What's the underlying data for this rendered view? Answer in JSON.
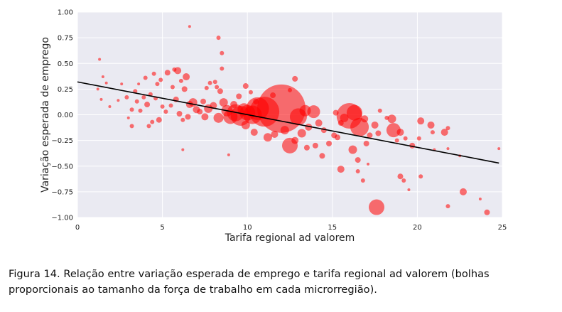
{
  "caption": "Figura 14. Relação entre variação esperada de emprego e tarifa regional ad valorem (bolhas proporcionais ao tamanho da força de trabalho em cada microrregião).",
  "chart_data": {
    "type": "scatter",
    "xlabel": "Tarifa regional ad valorem",
    "ylabel": "Variação esperada de emprego",
    "xlim": [
      0,
      25
    ],
    "ylim": [
      -1.0,
      1.0
    ],
    "xticks": [
      "0",
      "5",
      "10",
      "15",
      "20",
      "25"
    ],
    "yticks": [
      "−1.00",
      "−0.75",
      "−0.50",
      "−0.25",
      "0.00",
      "0.25",
      "0.50",
      "0.75",
      "1.00"
    ],
    "grid": true,
    "background": "#eaeaf2",
    "marker_color": "#ff0000",
    "marker_alpha": 0.55,
    "fit_line": {
      "x": [
        0,
        24.8
      ],
      "y": [
        0.32,
        -0.47
      ],
      "color": "#000000"
    },
    "series": [
      {
        "points": [
          {
            "x": 1.3,
            "y": 0.54,
            "s": 2
          },
          {
            "x": 1.5,
            "y": 0.37,
            "s": 2
          },
          {
            "x": 1.7,
            "y": 0.31,
            "s": 2
          },
          {
            "x": 1.2,
            "y": 0.25,
            "s": 2
          },
          {
            "x": 1.4,
            "y": 0.15,
            "s": 2
          },
          {
            "x": 1.9,
            "y": 0.08,
            "s": 2
          },
          {
            "x": 2.4,
            "y": 0.14,
            "s": 2
          },
          {
            "x": 2.6,
            "y": 0.3,
            "s": 2
          },
          {
            "x": 2.9,
            "y": 0.17,
            "s": 3
          },
          {
            "x": 3.2,
            "y": 0.05,
            "s": 3
          },
          {
            "x": 3.0,
            "y": -0.03,
            "s": 2
          },
          {
            "x": 3.2,
            "y": -0.11,
            "s": 3
          },
          {
            "x": 3.5,
            "y": 0.13,
            "s": 3
          },
          {
            "x": 3.7,
            "y": 0.04,
            "s": 3
          },
          {
            "x": 3.4,
            "y": 0.23,
            "s": 3
          },
          {
            "x": 3.6,
            "y": 0.3,
            "s": 2
          },
          {
            "x": 4.0,
            "y": 0.36,
            "s": 3
          },
          {
            "x": 3.9,
            "y": 0.17,
            "s": 3
          },
          {
            "x": 4.1,
            "y": 0.1,
            "s": 4
          },
          {
            "x": 4.3,
            "y": 0.2,
            "s": 3
          },
          {
            "x": 4.6,
            "y": 0.16,
            "s": 3
          },
          {
            "x": 4.7,
            "y": 0.3,
            "s": 3
          },
          {
            "x": 4.5,
            "y": 0.4,
            "s": 3
          },
          {
            "x": 4.9,
            "y": 0.34,
            "s": 3
          },
          {
            "x": 5.0,
            "y": 0.08,
            "s": 3
          },
          {
            "x": 4.8,
            "y": -0.05,
            "s": 4
          },
          {
            "x": 4.4,
            "y": -0.07,
            "s": 3
          },
          {
            "x": 4.2,
            "y": -0.11,
            "s": 3
          },
          {
            "x": 5.2,
            "y": 0.03,
            "s": 3
          },
          {
            "x": 5.5,
            "y": 0.09,
            "s": 3
          },
          {
            "x": 5.8,
            "y": 0.15,
            "s": 4
          },
          {
            "x": 5.6,
            "y": 0.27,
            "s": 3
          },
          {
            "x": 5.3,
            "y": 0.41,
            "s": 4
          },
          {
            "x": 5.7,
            "y": 0.44,
            "s": 3
          },
          {
            "x": 5.9,
            "y": 0.43,
            "s": 5
          },
          {
            "x": 6.1,
            "y": 0.33,
            "s": 3
          },
          {
            "x": 6.3,
            "y": 0.25,
            "s": 4
          },
          {
            "x": 6.4,
            "y": 0.37,
            "s": 5
          },
          {
            "x": 6.0,
            "y": 0.01,
            "s": 4
          },
          {
            "x": 6.2,
            "y": -0.05,
            "s": 3
          },
          {
            "x": 6.5,
            "y": -0.02,
            "s": 4
          },
          {
            "x": 6.6,
            "y": 0.1,
            "s": 5
          },
          {
            "x": 6.8,
            "y": 0.12,
            "s": 6
          },
          {
            "x": 7.0,
            "y": 0.05,
            "s": 5
          },
          {
            "x": 7.2,
            "y": 0.03,
            "s": 4
          },
          {
            "x": 7.4,
            "y": 0.13,
            "s": 4
          },
          {
            "x": 7.6,
            "y": 0.26,
            "s": 3
          },
          {
            "x": 7.8,
            "y": 0.31,
            "s": 3
          },
          {
            "x": 7.5,
            "y": -0.02,
            "s": 5
          },
          {
            "x": 7.7,
            "y": 0.06,
            "s": 6
          },
          {
            "x": 8.0,
            "y": 0.09,
            "s": 5
          },
          {
            "x": 8.2,
            "y": 0.27,
            "s": 3
          },
          {
            "x": 8.1,
            "y": 0.32,
            "s": 3
          },
          {
            "x": 8.4,
            "y": 0.23,
            "s": 4
          },
          {
            "x": 8.6,
            "y": 0.12,
            "s": 6
          },
          {
            "x": 8.8,
            "y": 0.04,
            "s": 8
          },
          {
            "x": 8.3,
            "y": -0.03,
            "s": 7
          },
          {
            "x": 9.0,
            "y": -0.02,
            "s": 10
          },
          {
            "x": 9.3,
            "y": 0.02,
            "s": 12
          },
          {
            "x": 9.6,
            "y": -0.01,
            "s": 14
          },
          {
            "x": 9.8,
            "y": 0.05,
            "s": 9
          },
          {
            "x": 10.0,
            "y": 0.02,
            "s": 11
          },
          {
            "x": 10.3,
            "y": 0.0,
            "s": 13
          },
          {
            "x": 10.6,
            "y": 0.06,
            "s": 16
          },
          {
            "x": 11.0,
            "y": 0.03,
            "s": 21
          },
          {
            "x": 12.0,
            "y": 0.06,
            "s": 34
          },
          {
            "x": 13.0,
            "y": -0.02,
            "s": 12
          },
          {
            "x": 13.4,
            "y": 0.04,
            "s": 8
          },
          {
            "x": 9.2,
            "y": 0.1,
            "s": 5
          },
          {
            "x": 9.5,
            "y": 0.18,
            "s": 4
          },
          {
            "x": 9.9,
            "y": 0.28,
            "s": 4
          },
          {
            "x": 10.2,
            "y": 0.22,
            "s": 3
          },
          {
            "x": 10.5,
            "y": 0.13,
            "s": 4
          },
          {
            "x": 11.5,
            "y": 0.19,
            "s": 4
          },
          {
            "x": 12.5,
            "y": 0.24,
            "s": 3
          },
          {
            "x": 12.8,
            "y": 0.35,
            "s": 4
          },
          {
            "x": 8.5,
            "y": 0.45,
            "s": 3
          },
          {
            "x": 8.3,
            "y": 0.75,
            "s": 3
          },
          {
            "x": 8.5,
            "y": 0.6,
            "s": 3
          },
          {
            "x": 6.6,
            "y": 0.86,
            "s": 2
          },
          {
            "x": 8.9,
            "y": -0.39,
            "s": 2
          },
          {
            "x": 6.2,
            "y": -0.34,
            "s": 2
          },
          {
            "x": 9.9,
            "y": -0.1,
            "s": 6
          },
          {
            "x": 10.4,
            "y": -0.17,
            "s": 5
          },
          {
            "x": 11.2,
            "y": -0.22,
            "s": 6
          },
          {
            "x": 11.6,
            "y": -0.19,
            "s": 5
          },
          {
            "x": 12.2,
            "y": -0.15,
            "s": 6
          },
          {
            "x": 12.5,
            "y": -0.3,
            "s": 11
          },
          {
            "x": 12.8,
            "y": -0.25,
            "s": 5
          },
          {
            "x": 13.2,
            "y": -0.18,
            "s": 6
          },
          {
            "x": 13.6,
            "y": -0.12,
            "s": 5
          },
          {
            "x": 13.9,
            "y": 0.03,
            "s": 9
          },
          {
            "x": 14.2,
            "y": -0.08,
            "s": 5
          },
          {
            "x": 14.5,
            "y": -0.15,
            "s": 4
          },
          {
            "x": 13.5,
            "y": -0.32,
            "s": 4
          },
          {
            "x": 14.0,
            "y": -0.3,
            "s": 4
          },
          {
            "x": 14.8,
            "y": -0.28,
            "s": 4
          },
          {
            "x": 14.4,
            "y": -0.4,
            "s": 4
          },
          {
            "x": 15.1,
            "y": -0.2,
            "s": 4
          },
          {
            "x": 15.5,
            "y": -0.08,
            "s": 4
          },
          {
            "x": 15.7,
            "y": -0.03,
            "s": 6
          },
          {
            "x": 16.0,
            "y": -0.01,
            "s": 18
          },
          {
            "x": 16.3,
            "y": 0.02,
            "s": 11
          },
          {
            "x": 16.6,
            "y": -0.12,
            "s": 13
          },
          {
            "x": 16.9,
            "y": -0.04,
            "s": 5
          },
          {
            "x": 17.2,
            "y": -0.2,
            "s": 4
          },
          {
            "x": 17.5,
            "y": -0.1,
            "s": 5
          },
          {
            "x": 17.0,
            "y": -0.28,
            "s": 4
          },
          {
            "x": 16.2,
            "y": -0.34,
            "s": 6
          },
          {
            "x": 15.3,
            "y": -0.22,
            "s": 4
          },
          {
            "x": 15.5,
            "y": -0.53,
            "s": 5
          },
          {
            "x": 15.2,
            "y": 0.02,
            "s": 4
          },
          {
            "x": 16.5,
            "y": -0.55,
            "s": 3
          },
          {
            "x": 17.1,
            "y": -0.48,
            "s": 2
          },
          {
            "x": 16.8,
            "y": -0.64,
            "s": 3
          },
          {
            "x": 16.5,
            "y": -0.44,
            "s": 4
          },
          {
            "x": 17.7,
            "y": -0.18,
            "s": 4
          },
          {
            "x": 18.2,
            "y": -0.03,
            "s": 3
          },
          {
            "x": 17.8,
            "y": 0.04,
            "s": 3
          },
          {
            "x": 18.5,
            "y": -0.04,
            "s": 6
          },
          {
            "x": 18.6,
            "y": -0.15,
            "s": 10
          },
          {
            "x": 19.0,
            "y": -0.17,
            "s": 5
          },
          {
            "x": 18.8,
            "y": -0.25,
            "s": 3
          },
          {
            "x": 19.3,
            "y": -0.23,
            "s": 3
          },
          {
            "x": 19.7,
            "y": -0.3,
            "s": 4
          },
          {
            "x": 20.2,
            "y": -0.06,
            "s": 5
          },
          {
            "x": 20.8,
            "y": -0.1,
            "s": 5
          },
          {
            "x": 20.9,
            "y": -0.17,
            "s": 3
          },
          {
            "x": 20.1,
            "y": -0.23,
            "s": 3
          },
          {
            "x": 21.6,
            "y": -0.17,
            "s": 5
          },
          {
            "x": 21.8,
            "y": -0.13,
            "s": 3
          },
          {
            "x": 21.0,
            "y": -0.34,
            "s": 2
          },
          {
            "x": 21.8,
            "y": -0.33,
            "s": 2
          },
          {
            "x": 19.0,
            "y": -0.6,
            "s": 4
          },
          {
            "x": 19.2,
            "y": -0.64,
            "s": 3
          },
          {
            "x": 20.2,
            "y": -0.6,
            "s": 3
          },
          {
            "x": 19.5,
            "y": -0.73,
            "s": 2
          },
          {
            "x": 17.6,
            "y": -0.9,
            "s": 11
          },
          {
            "x": 21.8,
            "y": -0.89,
            "s": 3
          },
          {
            "x": 22.7,
            "y": -0.75,
            "s": 5
          },
          {
            "x": 23.7,
            "y": -0.82,
            "s": 2
          },
          {
            "x": 24.1,
            "y": -0.95,
            "s": 4
          },
          {
            "x": 24.8,
            "y": -0.33,
            "s": 2
          },
          {
            "x": 22.5,
            "y": -0.4,
            "s": 2
          }
        ]
      }
    ]
  }
}
